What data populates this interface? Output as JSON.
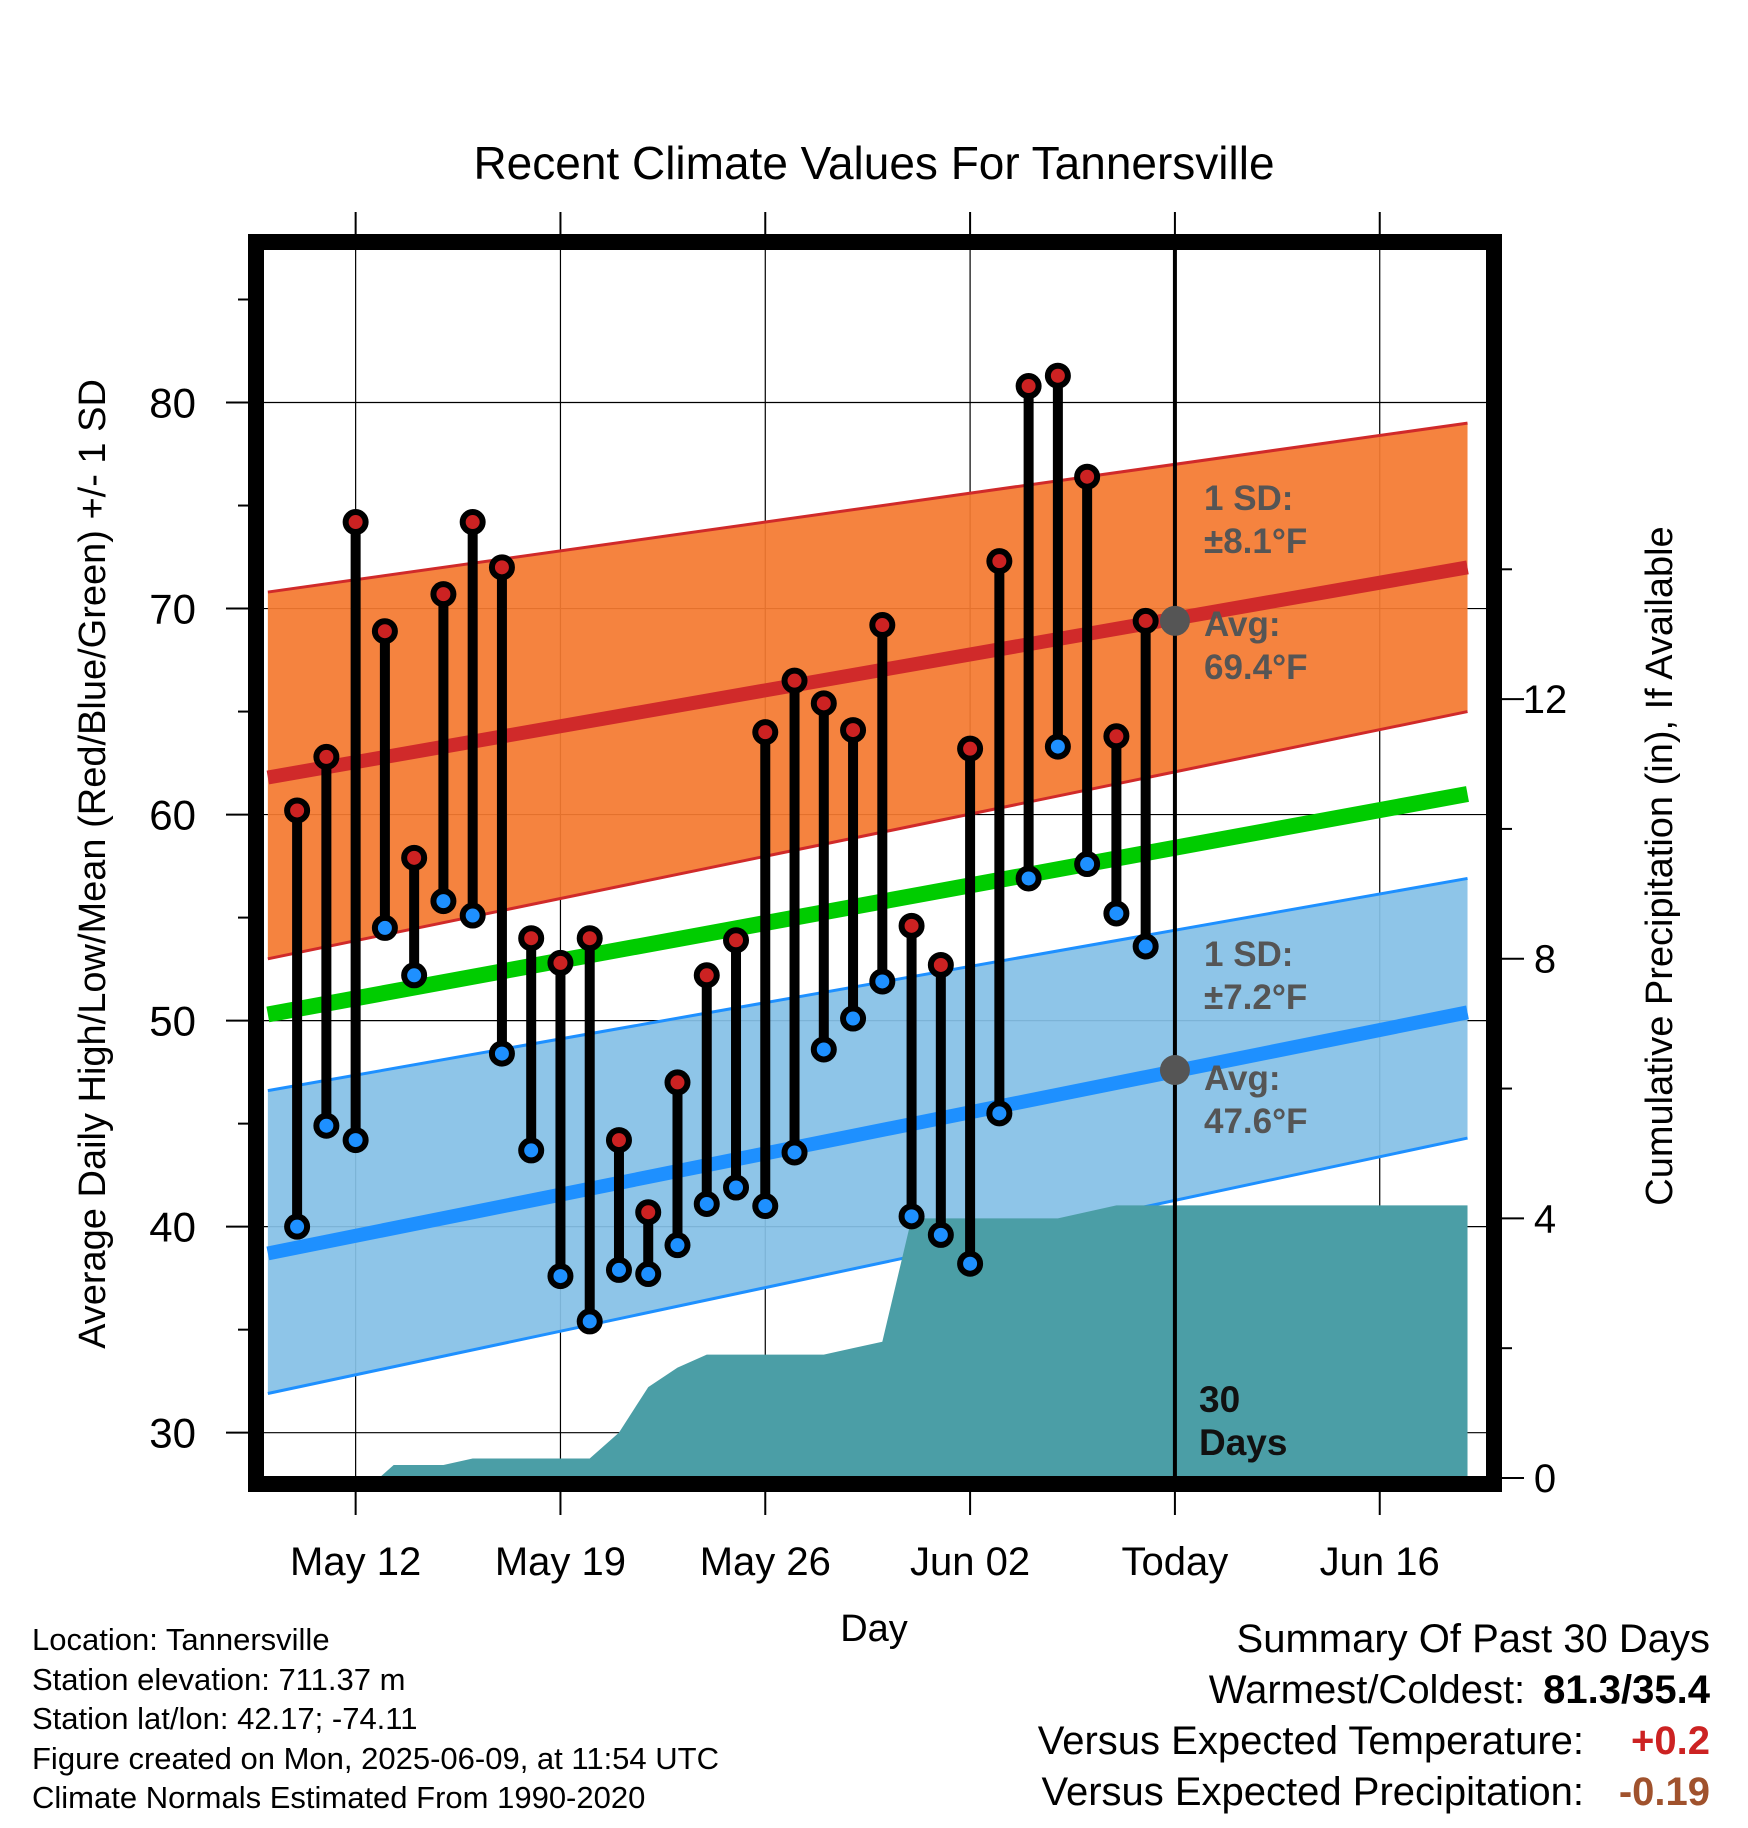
{
  "chart_data": {
    "type": "line",
    "title": "Recent Climate Values For Tannersville",
    "xlabel": "Day",
    "ylabel": "Average Daily High/Low/Mean (Red/Blue/Green) +/- 1 SD",
    "y2label": "Cumulative Precipitation (in), If Available",
    "ylim": [
      27.8,
      87.5
    ],
    "y2lim": [
      0,
      18.95
    ],
    "yticks": [
      30,
      40,
      50,
      60,
      70,
      80
    ],
    "y2ticks": [
      0,
      4,
      8,
      12
    ],
    "xlim": [
      -3.2,
      38.7
    ],
    "xticks": [
      {
        "day": 0,
        "label": "May 12"
      },
      {
        "day": 7,
        "label": "May 19"
      },
      {
        "day": 14,
        "label": "May 26"
      },
      {
        "day": 21,
        "label": "Jun 02"
      },
      {
        "day": 28,
        "label": "Today"
      },
      {
        "day": 35,
        "label": "Jun 16"
      }
    ],
    "grid": true,
    "today_day": 28,
    "observed_days": [
      -2,
      -1,
      0,
      1,
      2,
      3,
      4,
      5,
      6,
      7,
      8,
      9,
      10,
      11,
      12,
      13,
      14,
      15,
      16,
      17,
      18,
      19,
      20,
      21,
      22,
      23,
      24,
      25,
      26,
      27
    ],
    "series": [
      {
        "name": "High",
        "color": "#cc2222",
        "values": [
          60.2,
          62.8,
          74.2,
          68.9,
          57.9,
          70.7,
          74.2,
          72.0,
          54.0,
          52.8,
          54.0,
          44.2,
          40.7,
          47.0,
          52.2,
          53.9,
          64.0,
          66.5,
          65.4,
          64.1,
          69.2,
          54.6,
          52.7,
          63.2,
          72.3,
          80.8,
          81.3,
          76.4,
          63.8,
          69.4
        ]
      },
      {
        "name": "Low",
        "color": "#1e90ff",
        "values": [
          40.0,
          44.9,
          44.2,
          54.5,
          52.2,
          55.8,
          55.1,
          48.4,
          43.7,
          37.6,
          35.4,
          37.9,
          37.7,
          39.1,
          41.1,
          41.9,
          41.0,
          43.6,
          48.6,
          50.1,
          51.9,
          40.5,
          39.6,
          38.2,
          45.5,
          56.9,
          63.3,
          57.6,
          55.2,
          53.6
        ]
      }
    ],
    "normals": {
      "day_range": [
        -3,
        38
      ],
      "high_avg": [
        61.8,
        72.0
      ],
      "high_sd_band": [
        [
          53.0,
          70.8
        ],
        [
          65.0,
          79.0
        ]
      ],
      "mean_avg": [
        50.3,
        61.0
      ],
      "low_avg": [
        38.7,
        50.4
      ],
      "low_sd_band": [
        [
          31.9,
          46.6
        ],
        [
          44.3,
          56.9
        ]
      ]
    },
    "precipitation": {
      "days": [
        -3,
        0.8,
        1.3,
        3,
        4,
        5,
        6,
        8,
        9,
        10,
        11,
        12,
        13,
        14,
        15,
        16,
        17,
        18,
        19,
        20,
        21,
        22,
        23,
        24,
        25,
        26,
        27,
        28,
        38
      ],
      "values": [
        0,
        0,
        0.2,
        0.2,
        0.3,
        0.3,
        0.3,
        0.3,
        0.7,
        1.4,
        1.7,
        1.9,
        1.9,
        1.9,
        1.9,
        1.9,
        2.0,
        2.1,
        4.0,
        4.0,
        4.0,
        4.0,
        4.0,
        4.0,
        4.1,
        4.2,
        4.2,
        4.2,
        4.2
      ]
    },
    "annotations": {
      "high_sd": {
        "line1": "1 SD:",
        "line2": "±8.1°F"
      },
      "high_avg": {
        "line1": "Avg:",
        "line2": "69.4°F",
        "value": 69.4
      },
      "low_sd": {
        "line1": "1 SD:",
        "line2": "±7.2°F"
      },
      "low_avg": {
        "line1": "Avg:",
        "line2": "47.6°F",
        "value": 47.6
      },
      "window": {
        "line1": "30",
        "line2": "Days"
      }
    },
    "colors": {
      "high_band": "#f47a30",
      "high_line": "#d02a2a",
      "mean_line": "#00cc00",
      "low_band": "#85c1e6",
      "low_line": "#1e90ff",
      "precip": "#4b9ea6",
      "annotation": "#555555"
    }
  },
  "footer": {
    "location": "Location: Tannersville",
    "elevation": "Station elevation: 711.37 m",
    "latlon": "Station lat/lon: 42.17; -74.11",
    "created": "Figure created on Mon, 2025-06-09, at 11:54 UTC",
    "normals": "Climate Normals Estimated From 1990-2020"
  },
  "summary": {
    "heading": "Summary Of Past 30 Days",
    "warm_cold_label": "Warmest/Coldest:",
    "warm_cold_value": "81.3/35.4",
    "temp_label": "Versus Expected Temperature:",
    "temp_value": "+0.2",
    "temp_color": "#cc2222",
    "precip_label": "Versus Expected Precipitation:",
    "precip_value": "-0.19",
    "precip_color": "#a0522d"
  }
}
